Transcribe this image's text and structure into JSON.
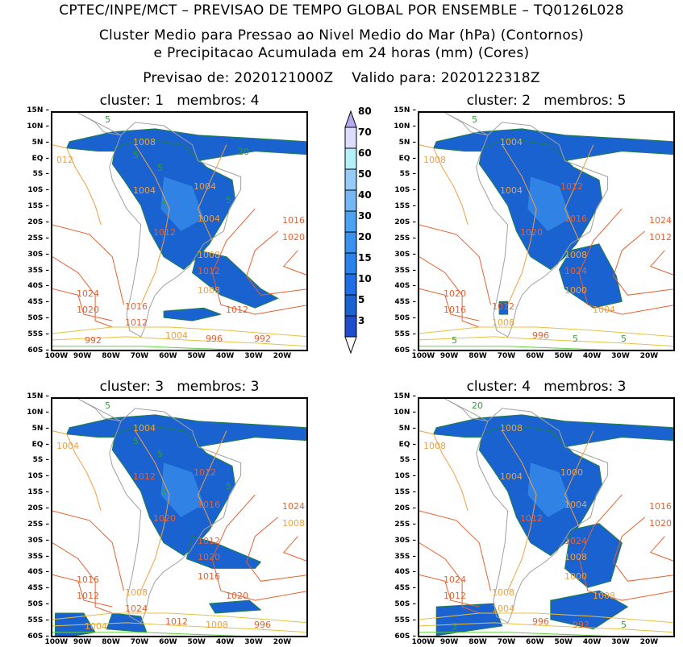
{
  "header": {
    "line1": "CPTEC/INPE/MCT – PREVISAO DE TEMPO GLOBAL POR ENSEMBLE – TQ0126L028",
    "line2": "Cluster Medio para Pressao ao Nivel Medio do Mar (hPa) (Contornos)",
    "line3": "e Precipitacao Acumulada em 24 horas (mm) (Cores)",
    "line4": "Previsao de: 2020121000Z    Valido para: 2020122318Z"
  },
  "axes": {
    "lat_ticks": [
      "15N",
      "10N",
      "5N",
      "EQ",
      "5S",
      "10S",
      "15S",
      "20S",
      "25S",
      "30S",
      "35S",
      "40S",
      "45S",
      "50S",
      "55S",
      "60S"
    ],
    "lon_ticks": [
      "100W",
      "90W",
      "80W",
      "70W",
      "60W",
      "50W",
      "40W",
      "30W",
      "20W"
    ]
  },
  "colorbar": {
    "labels": [
      "3",
      "5",
      "10",
      "15",
      "20",
      "30",
      "40",
      "50",
      "60",
      "70",
      "80"
    ],
    "colors": [
      "#1f4ccc",
      "#1a62cf",
      "#1e6ee6",
      "#2a82ec",
      "#3a92ee",
      "#4aa2f0",
      "#75b6f5",
      "#96cdf8",
      "#b4f0f8",
      "#dcdcfc"
    ],
    "over_color": "#b4a8f0",
    "under_color": "#ffffff"
  },
  "colors": {
    "isobar_low": "#f0a040",
    "isobar_high": "#e86030",
    "isobar_south": "#60d040",
    "coast": "#a0a0a0",
    "precip_contour": "#208040"
  },
  "panels": [
    {
      "title": "cluster: 1   membros: 4",
      "labels": [
        "012",
        "1008",
        "1004",
        "1004",
        "1004",
        "1012",
        "1016",
        "1020",
        "1008",
        "1012",
        "1024",
        "1020",
        "1016",
        "1012",
        "1012",
        "1008",
        "1004",
        "996",
        "992",
        "992",
        "5",
        "5",
        "5",
        "5",
        "5",
        "20"
      ]
    },
    {
      "title": "cluster: 2   membros: 5",
      "labels": [
        "1008",
        "1004",
        "1004",
        "1012",
        "1016",
        "1020",
        "1024",
        "1012",
        "1008",
        "1024",
        "1020",
        "1016",
        "1012",
        "1008",
        "1004",
        "1000",
        "996",
        "5",
        "5",
        "5",
        "5"
      ]
    },
    {
      "title": "cluster: 3   membros: 3",
      "labels": [
        "1004",
        "1004",
        "1012",
        "1012",
        "1016",
        "1020",
        "1024",
        "1008",
        "1012",
        "1020",
        "1016",
        "1012",
        "1008",
        "1024",
        "1020",
        "1016",
        "1012",
        "1008",
        "1004",
        "996",
        "5",
        "5",
        "5",
        "5",
        "5"
      ]
    },
    {
      "title": "cluster: 4   membros: 3",
      "labels": [
        "1008",
        "1008",
        "1004",
        "1000",
        "1004",
        "1012",
        "1016",
        "1020",
        "1024",
        "1008",
        "1024",
        "1012",
        "1008",
        "1004",
        "1008",
        "1000",
        "996",
        "992",
        "5",
        "5",
        "20"
      ]
    }
  ]
}
